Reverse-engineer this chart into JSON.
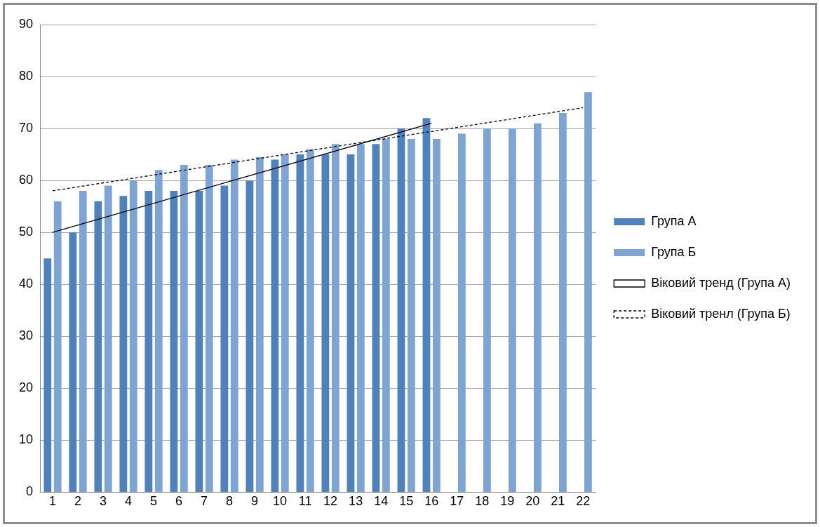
{
  "chart_data": {
    "type": "bar",
    "x": [
      1,
      2,
      3,
      4,
      5,
      6,
      7,
      8,
      9,
      10,
      11,
      12,
      13,
      14,
      15,
      16,
      17,
      18,
      19,
      20,
      21,
      22
    ],
    "xlim": [
      0.5,
      22.5
    ],
    "xticks": [
      1,
      2,
      3,
      4,
      5,
      6,
      7,
      8,
      9,
      10,
      11,
      12,
      13,
      14,
      15,
      16,
      17,
      18,
      19,
      20,
      21,
      22
    ],
    "ylim": [
      0,
      90
    ],
    "yticks": [
      0,
      10,
      20,
      30,
      40,
      50,
      60,
      70,
      80,
      90
    ],
    "grid": "y",
    "legend": "right",
    "series": [
      {
        "name": "Група А",
        "color": "#4f81bd",
        "values": [
          45,
          50,
          56,
          57,
          58,
          58,
          58,
          59,
          60,
          64,
          65,
          65,
          65,
          67,
          70,
          72,
          null,
          null,
          null,
          null,
          null,
          null
        ]
      },
      {
        "name": "Група Б",
        "color": "#7ea4d4",
        "values": [
          56,
          58,
          59,
          60,
          62,
          63,
          63,
          64,
          64.5,
          65,
          66,
          67,
          67,
          68,
          68,
          68,
          69,
          70,
          70,
          71,
          73,
          77
        ]
      },
      {
        "name": "Віковий тренд (Група А)",
        "type": "line",
        "color": "#000000",
        "line_style": "solid",
        "marker": "none",
        "x": [
          1,
          16
        ],
        "values": [
          50,
          71
        ]
      },
      {
        "name": "Віковий тренл (Група Б)",
        "type": "line",
        "color": "#000000",
        "line_style": "dashed",
        "marker": "none",
        "x": [
          1,
          22
        ],
        "values": [
          58,
          74
        ]
      }
    ]
  }
}
